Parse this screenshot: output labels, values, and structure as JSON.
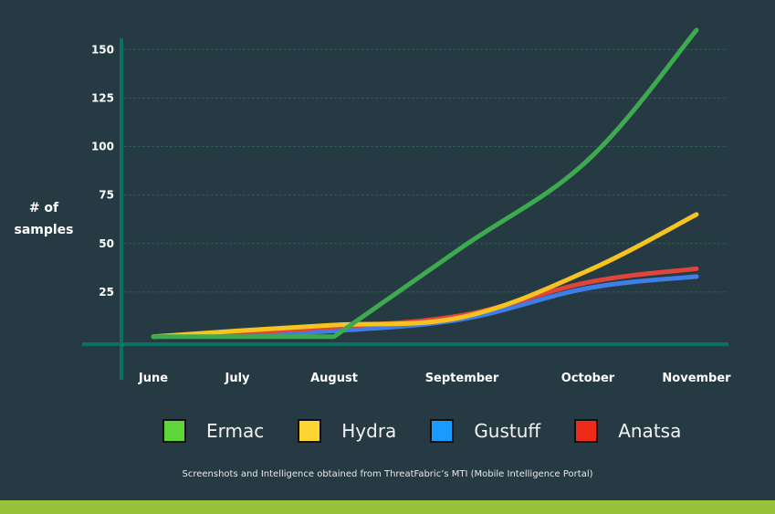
{
  "chart_data": {
    "type": "line",
    "title": "",
    "xlabel": "",
    "ylabel": "# of samples",
    "categories": [
      "June",
      "July",
      "August",
      "September",
      "October",
      "November"
    ],
    "ylim": [
      0,
      160
    ],
    "yticks": [
      25,
      50,
      75,
      100,
      125,
      150
    ],
    "grid": true,
    "legend_position": "bottom",
    "series": [
      {
        "name": "Ermac",
        "color": "#3daa4f",
        "swatch": "#5ed63a",
        "values": [
          2,
          2,
          2,
          48,
          93,
          160
        ]
      },
      {
        "name": "Hydra",
        "color": "#f5c421",
        "swatch": "#fcd532",
        "values": [
          2,
          5,
          8,
          12,
          36,
          65
        ]
      },
      {
        "name": "Gustuff",
        "color": "#3f7ee6",
        "swatch": "#1a9cff",
        "values": [
          2,
          3,
          5,
          11,
          27,
          33
        ]
      },
      {
        "name": "Anatsa",
        "color": "#e0453b",
        "swatch": "#ee2a1b",
        "values": [
          2,
          4,
          7,
          13,
          30,
          37
        ]
      }
    ]
  },
  "footnote": "Screenshots and Intelligence obtained from ThreatFabric’s MTI (Mobile Intelligence Portal)",
  "colors": {
    "background": "#263a44",
    "axis": "#0b6f61",
    "grid": "#2f5a57",
    "bottom_bar": "#97c33b"
  }
}
